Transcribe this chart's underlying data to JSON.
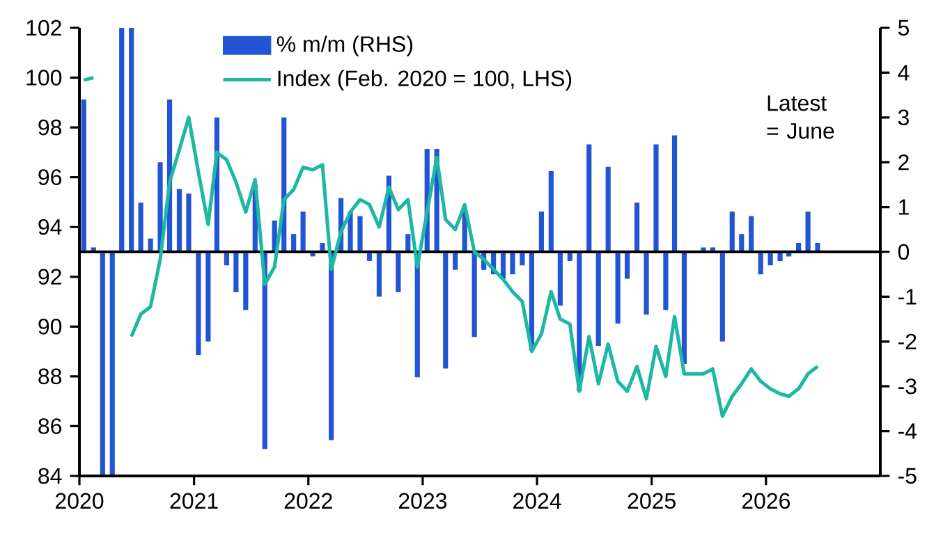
{
  "chart_data": {
    "type": "bar",
    "x": [
      "2020-01-15",
      "2020-02-15",
      "2020-03-15",
      "2020-04-15",
      "2020-05-15",
      "2020-06-15",
      "2020-07-15",
      "2020-08-15",
      "2020-09-15",
      "2020-10-15",
      "2020-11-15",
      "2020-12-15",
      "2021-01-15",
      "2021-02-15",
      "2021-03-15",
      "2021-04-15",
      "2021-05-15",
      "2021-06-15",
      "2021-07-15",
      "2021-08-15",
      "2021-09-15",
      "2021-10-15",
      "2021-11-15",
      "2021-12-15",
      "2022-01-15",
      "2022-02-15",
      "2022-03-15",
      "2022-04-15",
      "2022-05-15",
      "2022-06-15",
      "2022-07-15",
      "2022-08-15",
      "2022-09-15",
      "2022-10-15",
      "2022-11-15",
      "2022-12-15",
      "2023-01-15",
      "2023-02-15",
      "2023-03-15",
      "2023-04-15",
      "2023-05-15",
      "2023-06-15",
      "2023-07-15",
      "2023-08-15",
      "2023-09-15",
      "2023-10-15",
      "2023-11-15",
      "2023-12-15",
      "2024-01-15",
      "2024-02-15",
      "2024-03-15",
      "2024-04-15",
      "2024-05-15",
      "2024-06-15",
      "2024-07-15",
      "2024-08-15",
      "2024-09-15",
      "2024-10-15",
      "2024-11-15",
      "2024-12-15",
      "2025-01-15",
      "2025-02-15",
      "2025-03-15",
      "2025-04-15",
      "2025-05-15",
      "2025-06-15",
      "2025-07-15",
      "2025-08-15",
      "2025-09-15",
      "2025-10-15",
      "2025-11-15",
      "2025-12-15",
      "2026-01-15",
      "2026-02-15",
      "2026-03-15",
      "2026-04-15",
      "2026-05-15",
      "2026-06-15"
    ],
    "series": [
      {
        "name": "% m/m (RHS)",
        "axis": "y2",
        "color": "#2255d4",
        "values": [
          3.4,
          0.1,
          -5,
          -5,
          5,
          5,
          1.1,
          0.3,
          2.0,
          3.4,
          1.4,
          1.3,
          -2.3,
          -2.0,
          3.0,
          -0.3,
          -0.9,
          -1.3,
          1.5,
          -4.4,
          0.7,
          3.0,
          0.4,
          0.9,
          -0.1,
          0.2,
          -4.2,
          1.2,
          0.9,
          0.8,
          -0.2,
          -1.0,
          1.7,
          -0.9,
          0.4,
          -2.8,
          2.3,
          2.3,
          -2.6,
          -0.4,
          1.0,
          -1.9,
          -0.4,
          -0.5,
          -0.6,
          -0.5,
          -0.3,
          -2.2,
          0.9,
          1.8,
          -1.2,
          -0.2,
          -3.1,
          2.4,
          -2.1,
          1.9,
          -1.6,
          -0.6,
          1.1,
          -1.4,
          2.4,
          -1.3,
          2.6,
          -2.5,
          0,
          0.1,
          0.1,
          -2.0,
          0.9,
          0.4,
          0.8,
          -0.5,
          -0.3,
          -0.2,
          -0.1,
          0.2,
          0.9,
          0.2
        ]
      },
      {
        "name": "Index (Feb. 2020 = 100, LHS)",
        "type": "line",
        "color": "#1db8a4",
        "values": [
          99.9,
          100,
          null,
          null,
          null,
          89.6,
          90.5,
          90.8,
          92.7,
          95.8,
          97.1,
          98.4,
          96.2,
          94.1,
          97.0,
          96.7,
          95.8,
          94.6,
          95.9,
          91.7,
          92.4,
          95.1,
          95.5,
          96.4,
          96.3,
          96.5,
          92.3,
          93.8,
          94.6,
          95.1,
          94.9,
          94.0,
          95.6,
          94.7,
          95.1,
          92.4,
          94.6,
          96.8,
          94.3,
          93.9,
          94.9,
          93.0,
          92.7,
          92.3,
          91.9,
          91.4,
          91.0,
          89.0,
          89.7,
          91.4,
          90.3,
          90.1,
          87.4,
          89.6,
          87.7,
          89.3,
          87.8,
          87.4,
          88.4,
          87.1,
          89.2,
          88.0,
          90.4,
          88.1,
          88.1,
          88.1,
          88.3,
          86.4,
          87.2,
          87.7,
          88.3,
          87.8,
          87.5,
          87.3,
          87.2,
          87.5,
          88.1,
          88.4
        ]
      }
    ],
    "xlim": [
      "2020",
      "2027"
    ],
    "xticks": [
      "2020",
      "2021",
      "2022",
      "2023",
      "2024",
      "2025",
      "2026"
    ],
    "ylim": [
      84,
      102
    ],
    "yticks": [
      84,
      86,
      88,
      90,
      92,
      94,
      96,
      98,
      100,
      102
    ],
    "y2lim": [
      -5,
      5
    ],
    "y2ticks": [
      -5,
      -4,
      -3,
      -2,
      -1,
      0,
      1,
      2,
      3,
      4,
      5
    ],
    "ref_lines": [
      {
        "axis": "y2",
        "value": 0
      }
    ],
    "annotations": [
      "Latest = June"
    ],
    "legend": "top",
    "marker": "none",
    "line_style": "solid"
  }
}
